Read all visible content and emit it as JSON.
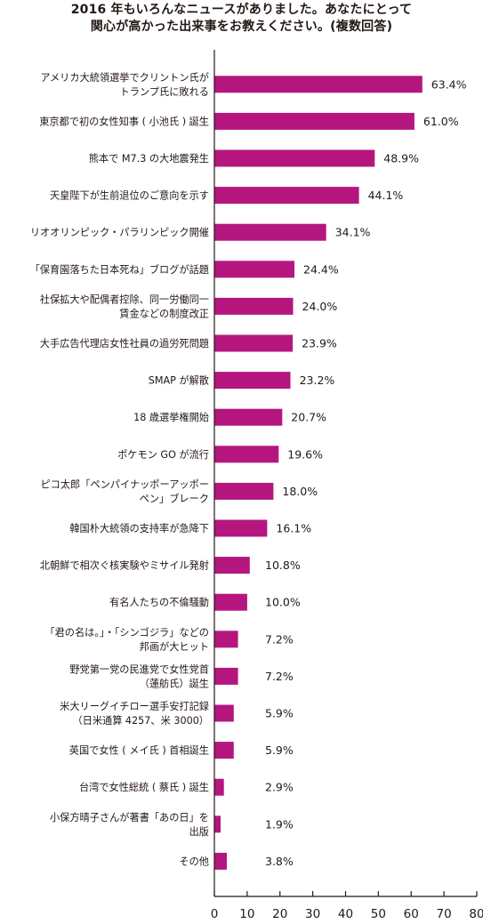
{
  "chart_data": {
    "type": "bar",
    "orientation": "horizontal",
    "title": [
      "2016 年もいろんなニュースがありました。あなたにとって",
      "関心が高かった出来事をお教えください。(複数回答)"
    ],
    "categories": [
      [
        "アメリカ大統領選挙でクリントン氏が",
        "トランプ氏に敗れる"
      ],
      [
        "東京都で初の女性知事 ( 小池氏 ) 誕生"
      ],
      [
        "熊本で M7.3 の大地震発生"
      ],
      [
        "天皇陛下が生前退位のご意向を示す"
      ],
      [
        "リオオリンピック・パラリンピック開催"
      ],
      [
        "「保育園落ちた日本死ね」ブログが話題"
      ],
      [
        "社保拡大や配偶者控除、同一労働同一",
        "賃金などの制度改正"
      ],
      [
        "大手広告代理店女性社員の過労死問題"
      ],
      [
        "SMAP が解散"
      ],
      [
        "18 歳選挙権開始"
      ],
      [
        "ポケモン GO が流行"
      ],
      [
        "ピコ太郎「ペンパイナッポーアッポー",
        "ペン」ブレーク"
      ],
      [
        "韓国朴大統領の支持率が急降下"
      ],
      [
        "北朝鮮で相次ぐ核実験やミサイル発射"
      ],
      [
        "有名人たちの不倫騒動"
      ],
      [
        "「君の名は。」・「シンゴジラ」などの",
        "邦画が大ヒット"
      ],
      [
        "野党第一党の民進党で女性党首",
        "（蓮舫氏）誕生"
      ],
      [
        "米大リーグイチロー選手安打記録",
        "（日米通算 4257、米 3000）"
      ],
      [
        "英国で女性 ( メイ氏 ) 首相誕生"
      ],
      [
        "台湾で女性総統 ( 蔡氏 ) 誕生"
      ],
      [
        "小保方晴子さんが著書「あの日」を",
        "出版"
      ],
      [
        "その他"
      ]
    ],
    "values": [
      63.4,
      61.0,
      48.9,
      44.1,
      34.1,
      24.4,
      24.0,
      23.9,
      23.2,
      20.7,
      19.6,
      18.0,
      16.1,
      10.8,
      10.0,
      7.2,
      7.2,
      5.9,
      5.9,
      2.9,
      1.9,
      3.8
    ],
    "value_labels": [
      "63.4%",
      "61.0%",
      "48.9%",
      "44.1%",
      "34.1%",
      "24.4%",
      "24.0%",
      "23.9%",
      "23.2%",
      "20.7%",
      "19.6%",
      "18.0%",
      "16.1%",
      "10.8%",
      "10.0%",
      "7.2%",
      "7.2%",
      "5.9%",
      "5.9%",
      "2.9%",
      "1.9%",
      "3.8%"
    ],
    "xlim": [
      0,
      80
    ],
    "xticks": [
      "0",
      "10",
      "20",
      "30",
      "40",
      "50",
      "60",
      "70",
      "80"
    ],
    "bar_color": "#b5167e",
    "grid": false
  }
}
